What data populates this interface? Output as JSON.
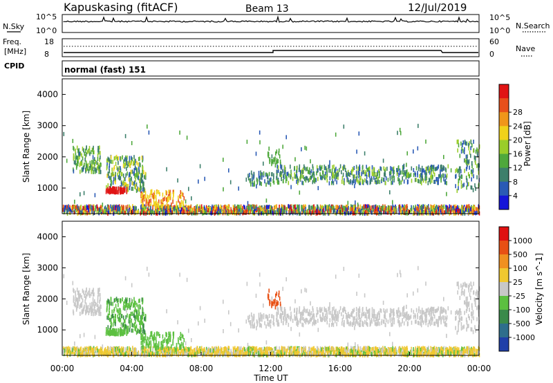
{
  "header": {
    "station": "Kapuskasing (fitACF)",
    "beam": "Beam 13",
    "date": "12/Jul/2019"
  },
  "top_panels": {
    "nsky_label": "N.Sky",
    "nsky_ticks": [
      "10^5",
      "10^0"
    ],
    "nsearch_label": "N.Search",
    "nsearch_ticks": [
      "10^5",
      "10^0"
    ],
    "freq_label": "Freq.",
    "freq_unit": "[MHz]",
    "freq_ticks": [
      "18",
      "8"
    ],
    "nave_label": "Nave",
    "nave_ticks": [
      "60",
      "0"
    ],
    "cpid_label": "CPID",
    "cpid_value": "normal (fast) 151"
  },
  "chart_data": [
    {
      "type": "heatmap",
      "name": "power",
      "ylabel": "Slant Range [km]",
      "xlabel": "",
      "ylim": [
        180,
        4500
      ],
      "yticks": [
        "1000",
        "2000",
        "3000",
        "4000"
      ],
      "colorbar": {
        "label": "Power [dB]",
        "ticks": [
          "4",
          "8",
          "12",
          "16",
          "20",
          "24",
          "28"
        ],
        "colors": [
          "#1515d8",
          "#2a5ab5",
          "#3d7f6b",
          "#4fa83c",
          "#9acd2a",
          "#f0d21a",
          "#f0961a",
          "#e8501a",
          "#e01414"
        ]
      }
    },
    {
      "type": "heatmap",
      "name": "velocity",
      "ylabel": "Slant Range [km]",
      "xlabel": "Time UT",
      "ylim": [
        180,
        4500
      ],
      "yticks": [
        "1000",
        "2000",
        "3000",
        "4000"
      ],
      "xticks": [
        "00:00",
        "04:00",
        "08:00",
        "12:00",
        "16:00",
        "20:00",
        "00:00"
      ],
      "colorbar": {
        "label": "Velocity [m s^-1]",
        "ticks": [
          "1000",
          "500",
          "100",
          "25",
          "-25",
          "-100",
          "-500",
          "-1000"
        ],
        "colors": [
          "#1f3fa8",
          "#2e6e8c",
          "#3a8a4a",
          "#5cc040",
          "#c8c8c8",
          "#f0c830",
          "#f09020",
          "#e85014",
          "#e01010"
        ]
      }
    }
  ]
}
